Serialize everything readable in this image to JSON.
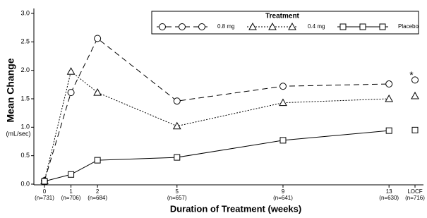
{
  "chart_data": {
    "type": "line",
    "ylabel": "Mean Change",
    "yunit": "(mL/sec)",
    "xlabel": "Duration of Treatment (weeks)",
    "legend_title": "Treatment",
    "x": [
      0,
      1,
      2,
      5,
      9,
      13
    ],
    "xlim": [
      -0.4,
      14.3
    ],
    "xticks": [
      0,
      1,
      2,
      5,
      9,
      13
    ],
    "x_sublabels": [
      "(n=731)",
      "(n=706)",
      "(n=684)",
      "(n=657)",
      "(n=641)",
      "(n=630)"
    ],
    "locf_label": "LOCF",
    "locf_sublabel": "(n=716)",
    "ylim": [
      0,
      3
    ],
    "yticks": [
      {
        "value": 0,
        "label": "0.0"
      },
      0.5,
      {
        "value": 1,
        "label": "1.0"
      },
      1.5,
      {
        "value": 2,
        "label": "2.0"
      },
      2.5,
      {
        "value": 3,
        "label": "3.0"
      }
    ],
    "annotation": "*",
    "series": [
      {
        "name": "0.8 mg",
        "color": "#000000",
        "dash": "dashed",
        "marker": "circle",
        "values": [
          0.06,
          1.61,
          2.56,
          1.46,
          1.72,
          1.76
        ],
        "locf": 1.83
      },
      {
        "name": "0.4 mg",
        "color": "#000000",
        "dash": "dotted",
        "marker": "triangle",
        "values": [
          0.06,
          1.98,
          1.61,
          1.02,
          1.43,
          1.5
        ],
        "locf": 1.55
      },
      {
        "name": "Placebo",
        "color": "#000000",
        "dash": "solid",
        "marker": "square",
        "values": [
          0.05,
          0.17,
          0.42,
          0.47,
          0.77,
          0.94
        ],
        "locf": 0.95
      }
    ]
  }
}
